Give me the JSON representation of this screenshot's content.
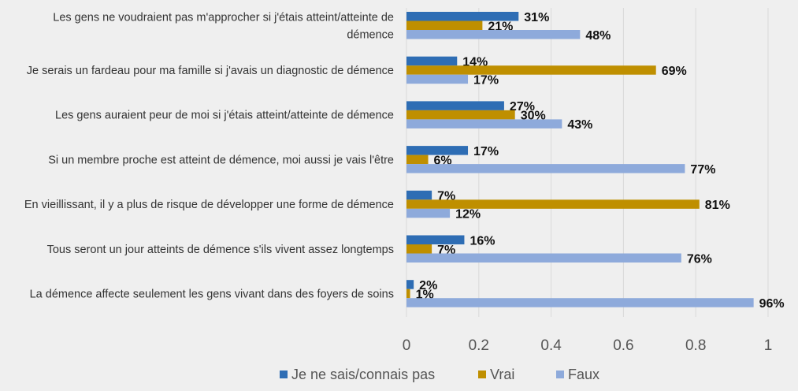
{
  "chart_data": {
    "type": "bar",
    "orientation": "horizontal",
    "categories": [
      [
        "Les gens ne voudraient pas m'approcher si j'étais atteint/atteinte de",
        "démence"
      ],
      [
        "Je serais un fardeau pour ma famille si j'avais un diagnostic de démence"
      ],
      [
        "Les gens auraient peur de moi si j'étais atteint/atteinte de démence"
      ],
      [
        "Si un membre proche est atteint de démence, moi aussi je vais l'être"
      ],
      [
        "En vieillissant, il y a plus de risque de développer une forme de démence"
      ],
      [
        "Tous seront un jour atteints de démence s'ils vivent assez longtemps"
      ],
      [
        "La démence affecte seulement les gens vivant dans des foyers de soins"
      ]
    ],
    "series": [
      {
        "name": "Je ne sais/connais pas",
        "color": "#2e6db4",
        "values": [
          0.31,
          0.14,
          0.27,
          0.17,
          0.07,
          0.16,
          0.02
        ],
        "labels": [
          "31%",
          "14%",
          "27%",
          "17%",
          "7%",
          "16%",
          "2%"
        ]
      },
      {
        "name": "Vrai",
        "color": "#bf8f00",
        "values": [
          0.21,
          0.69,
          0.3,
          0.06,
          0.81,
          0.07,
          0.01
        ],
        "labels": [
          "21%",
          "69%",
          "30%",
          "6%",
          "81%",
          "7%",
          "1%"
        ]
      },
      {
        "name": "Faux",
        "color": "#8eaadb",
        "values": [
          0.48,
          0.17,
          0.43,
          0.77,
          0.12,
          0.76,
          0.96
        ],
        "labels": [
          "48%",
          "17%",
          "43%",
          "77%",
          "12%",
          "76%",
          "96%"
        ]
      }
    ],
    "xlim": [
      0,
      1
    ],
    "xticks": [
      0,
      0.2,
      0.4,
      0.6,
      0.8,
      1
    ],
    "xtick_labels": [
      "0",
      "0.2",
      "0.4",
      "0.6",
      "0.8",
      "1"
    ],
    "grid": true,
    "legend_position": "bottom"
  }
}
